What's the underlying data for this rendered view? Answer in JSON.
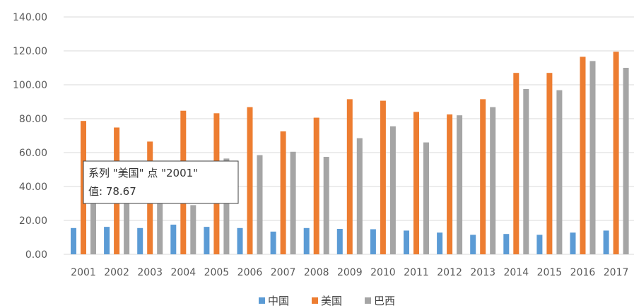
{
  "chart_data": {
    "type": "bar",
    "title": "",
    "xlabel": "",
    "ylabel": "",
    "ylim": [
      0,
      140
    ],
    "yticks": [
      "0.00",
      "20.00",
      "40.00",
      "60.00",
      "80.00",
      "100.00",
      "120.00",
      "140.00"
    ],
    "grid": true,
    "legend_position": "bottom",
    "categories": [
      "2001",
      "2002",
      "2003",
      "2004",
      "2005",
      "2006",
      "2007",
      "2008",
      "2009",
      "2010",
      "2011",
      "2012",
      "2013",
      "2014",
      "2015",
      "2016",
      "2017"
    ],
    "series": [
      {
        "name": "中国",
        "color": "#5B9BD5",
        "values": [
          15.5,
          16.2,
          15.5,
          17.5,
          16.2,
          15.5,
          13.4,
          15.5,
          15.0,
          14.8,
          14.0,
          12.8,
          11.5,
          12.0,
          11.5,
          12.8,
          14.0
        ]
      },
      {
        "name": "美国",
        "color": "#ED7D31",
        "values": [
          78.67,
          74.8,
          66.5,
          84.7,
          83.2,
          86.8,
          72.5,
          80.6,
          91.5,
          90.6,
          84.0,
          82.5,
          91.5,
          107.0,
          107.0,
          116.5,
          119.5
        ]
      },
      {
        "name": "巴西",
        "color": "#A5A5A5",
        "values": [
          30.0,
          32.0,
          30.0,
          29.0,
          56.5,
          58.5,
          60.5,
          57.5,
          68.5,
          75.5,
          66.0,
          82.0,
          86.8,
          97.5,
          96.8,
          114.0,
          110.0
        ]
      }
    ]
  },
  "tooltip": {
    "line1": "系列 \"美国\" 点 \"2001\"",
    "line2": "值: 78.67"
  }
}
